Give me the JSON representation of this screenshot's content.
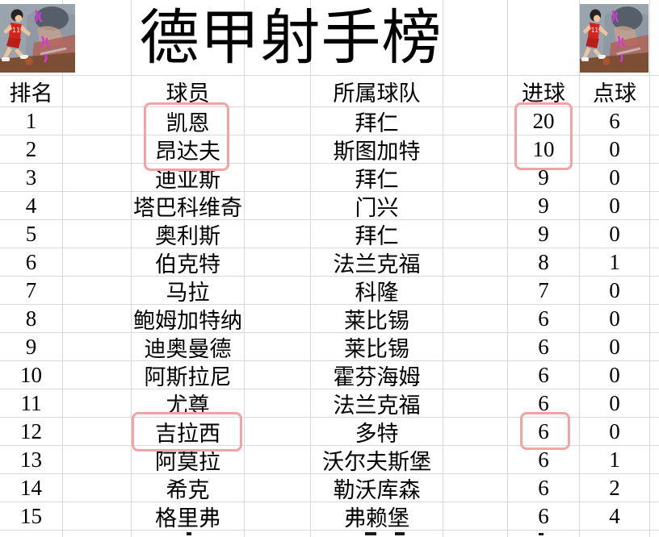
{
  "title": "德甲射手榜",
  "table": {
    "headers": {
      "rank": "排名",
      "player": "球员",
      "team": "所属球队",
      "goals": "进球",
      "penalty": "点球"
    },
    "rows": [
      {
        "rank": "1",
        "player": "凯恩",
        "team": "拜仁",
        "goals": "20",
        "penalty": "6"
      },
      {
        "rank": "2",
        "player": "昂达夫",
        "team": "斯图加特",
        "goals": "10",
        "penalty": "0"
      },
      {
        "rank": "3",
        "player": "迪亚斯",
        "team": "拜仁",
        "goals": "9",
        "penalty": "0"
      },
      {
        "rank": "4",
        "player": "塔巴科维奇",
        "team": "门兴",
        "goals": "9",
        "penalty": "0"
      },
      {
        "rank": "5",
        "player": "奥利斯",
        "team": "拜仁",
        "goals": "9",
        "penalty": "0"
      },
      {
        "rank": "6",
        "player": "伯克特",
        "team": "法兰克福",
        "goals": "8",
        "penalty": "1"
      },
      {
        "rank": "7",
        "player": "马拉",
        "team": "科隆",
        "goals": "7",
        "penalty": "0"
      },
      {
        "rank": "8",
        "player": "鲍姆加特纳",
        "team": "莱比锡",
        "goals": "6",
        "penalty": "0"
      },
      {
        "rank": "9",
        "player": "迪奥曼德",
        "team": "莱比锡",
        "goals": "6",
        "penalty": "0"
      },
      {
        "rank": "10",
        "player": "阿斯拉尼",
        "team": "霍芬海姆",
        "goals": "6",
        "penalty": "0"
      },
      {
        "rank": "11",
        "player": "尤尊",
        "team": "法兰克福",
        "goals": "6",
        "penalty": "0"
      },
      {
        "rank": "12",
        "player": "吉拉西",
        "team": "多特",
        "goals": "6",
        "penalty": "0"
      },
      {
        "rank": "13",
        "player": "阿莫拉",
        "team": "沃尔夫斯堡",
        "goals": "6",
        "penalty": "1"
      },
      {
        "rank": "14",
        "player": "希克",
        "team": "勒沃库森",
        "goals": "6",
        "penalty": "2"
      },
      {
        "rank": "15",
        "player": "格里弗",
        "team": "弗赖堡",
        "goals": "6",
        "penalty": "4"
      }
    ]
  },
  "highlights": [
    {
      "column": "player",
      "rows": [
        1,
        2
      ]
    },
    {
      "column": "goals",
      "rows": [
        1,
        2
      ]
    },
    {
      "column": "player",
      "rows": [
        12
      ]
    },
    {
      "column": "goals",
      "rows": [
        12
      ]
    }
  ],
  "colors": {
    "highlight_box": "#f2a3a3",
    "gridline": "#d9d9d9",
    "text": "#000000",
    "calligraphy_magenta": "#cf3bd4"
  },
  "corner_artwork_description": "Slam Dunk basketball player in red #11 jersey dribbling, purple vertical calligraphy"
}
